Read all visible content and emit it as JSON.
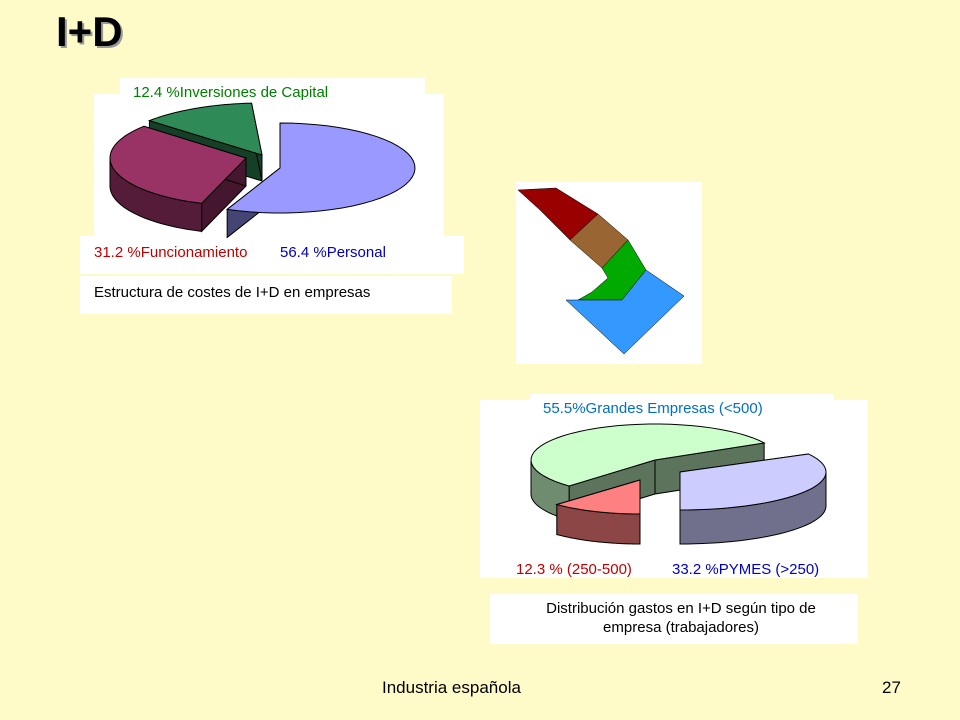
{
  "slide": {
    "title": "I+D",
    "footer": "Industria española",
    "page_number": "27"
  },
  "chart_data": [
    {
      "type": "pie",
      "caption": "Estructura de costes de I+D en empresas",
      "slices": [
        {
          "label": "12.4 %Inversiones de Capital",
          "value": 12.4,
          "color": "#2E8B57"
        },
        {
          "label": "31.2 %Funcionamiento",
          "value": 31.2,
          "color": "#993366"
        },
        {
          "label": "56.4 %Personal",
          "value": 56.4,
          "color": "#9999FF"
        }
      ],
      "label_colors": [
        "#008000",
        "#C00000",
        "#0000C0"
      ]
    },
    {
      "type": "pie",
      "caption_line1": "Distribución gastos en I+D según tipo de",
      "caption_line2": "empresa (trabajadores)",
      "slices": [
        {
          "label": "55.5%Grandes Empresas (<500)",
          "value": 55.5,
          "color": "#CCFFCC"
        },
        {
          "label": "12.3 % (250-500)",
          "value": 12.3,
          "color": "#FF8080"
        },
        {
          "label": "33.2 %PYMES (>250)",
          "value": 33.2,
          "color": "#CCCCFF"
        }
      ],
      "label_colors": [
        "#0070C0",
        "#C00000",
        "#0000C0"
      ]
    }
  ],
  "arrow": {
    "band_colors": [
      "#990000",
      "#996633",
      "#00AA00",
      "#3399FF"
    ]
  }
}
